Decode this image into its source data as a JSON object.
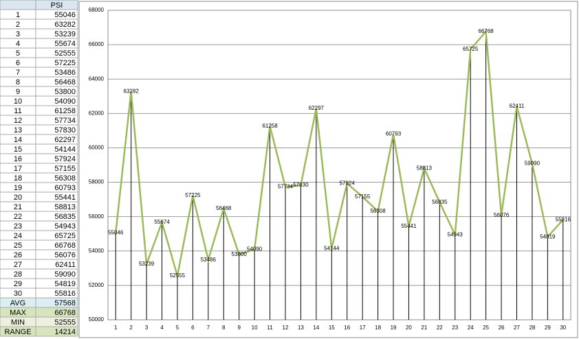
{
  "table": {
    "header": "PSI",
    "rows": [
      [
        1,
        55046
      ],
      [
        2,
        63282
      ],
      [
        3,
        53239
      ],
      [
        4,
        55674
      ],
      [
        5,
        52555
      ],
      [
        6,
        57225
      ],
      [
        7,
        53486
      ],
      [
        8,
        56468
      ],
      [
        9,
        53800
      ],
      [
        10,
        54090
      ],
      [
        11,
        61258
      ],
      [
        12,
        57734
      ],
      [
        13,
        57830
      ],
      [
        14,
        62297
      ],
      [
        15,
        54144
      ],
      [
        16,
        57924
      ],
      [
        17,
        57155
      ],
      [
        18,
        56308
      ],
      [
        19,
        60793
      ],
      [
        20,
        55441
      ],
      [
        21,
        58813
      ],
      [
        22,
        56835
      ],
      [
        23,
        54943
      ],
      [
        24,
        65725
      ],
      [
        25,
        66768
      ],
      [
        26,
        56076
      ],
      [
        27,
        62411
      ],
      [
        28,
        59090
      ],
      [
        29,
        54819
      ],
      [
        30,
        55816
      ]
    ],
    "summary": [
      [
        "AVG",
        57568
      ],
      [
        "MAX",
        66768
      ],
      [
        "MIN",
        52555
      ],
      [
        "RANGE",
        14214
      ]
    ]
  },
  "chart_data": {
    "type": "line",
    "categories": [
      "1",
      "2",
      "3",
      "4",
      "5",
      "6",
      "7",
      "8",
      "9",
      "10",
      "11",
      "12",
      "13",
      "14",
      "15",
      "16",
      "17",
      "18",
      "19",
      "20",
      "21",
      "22",
      "23",
      "24",
      "25",
      "26",
      "27",
      "28",
      "29",
      "30"
    ],
    "series": [
      {
        "color": "#9bbb59",
        "values": [
          55046,
          63282,
          53239,
          55674,
          52555,
          57225,
          53486,
          56468,
          53800,
          54090,
          61258,
          57734,
          57830,
          62297,
          54144,
          57924,
          57155,
          56308,
          60793,
          55441,
          58813,
          56835,
          54943,
          65725,
          66768,
          56076,
          62411,
          59090,
          54819,
          55816
        ]
      }
    ],
    "ylim": [
      50000,
      68000
    ],
    "yticks": [
      50000,
      52000,
      54000,
      56000,
      58000,
      60000,
      62000,
      64000,
      66000,
      68000
    ],
    "grid": true,
    "drop_lines": true,
    "data_labels": true
  }
}
